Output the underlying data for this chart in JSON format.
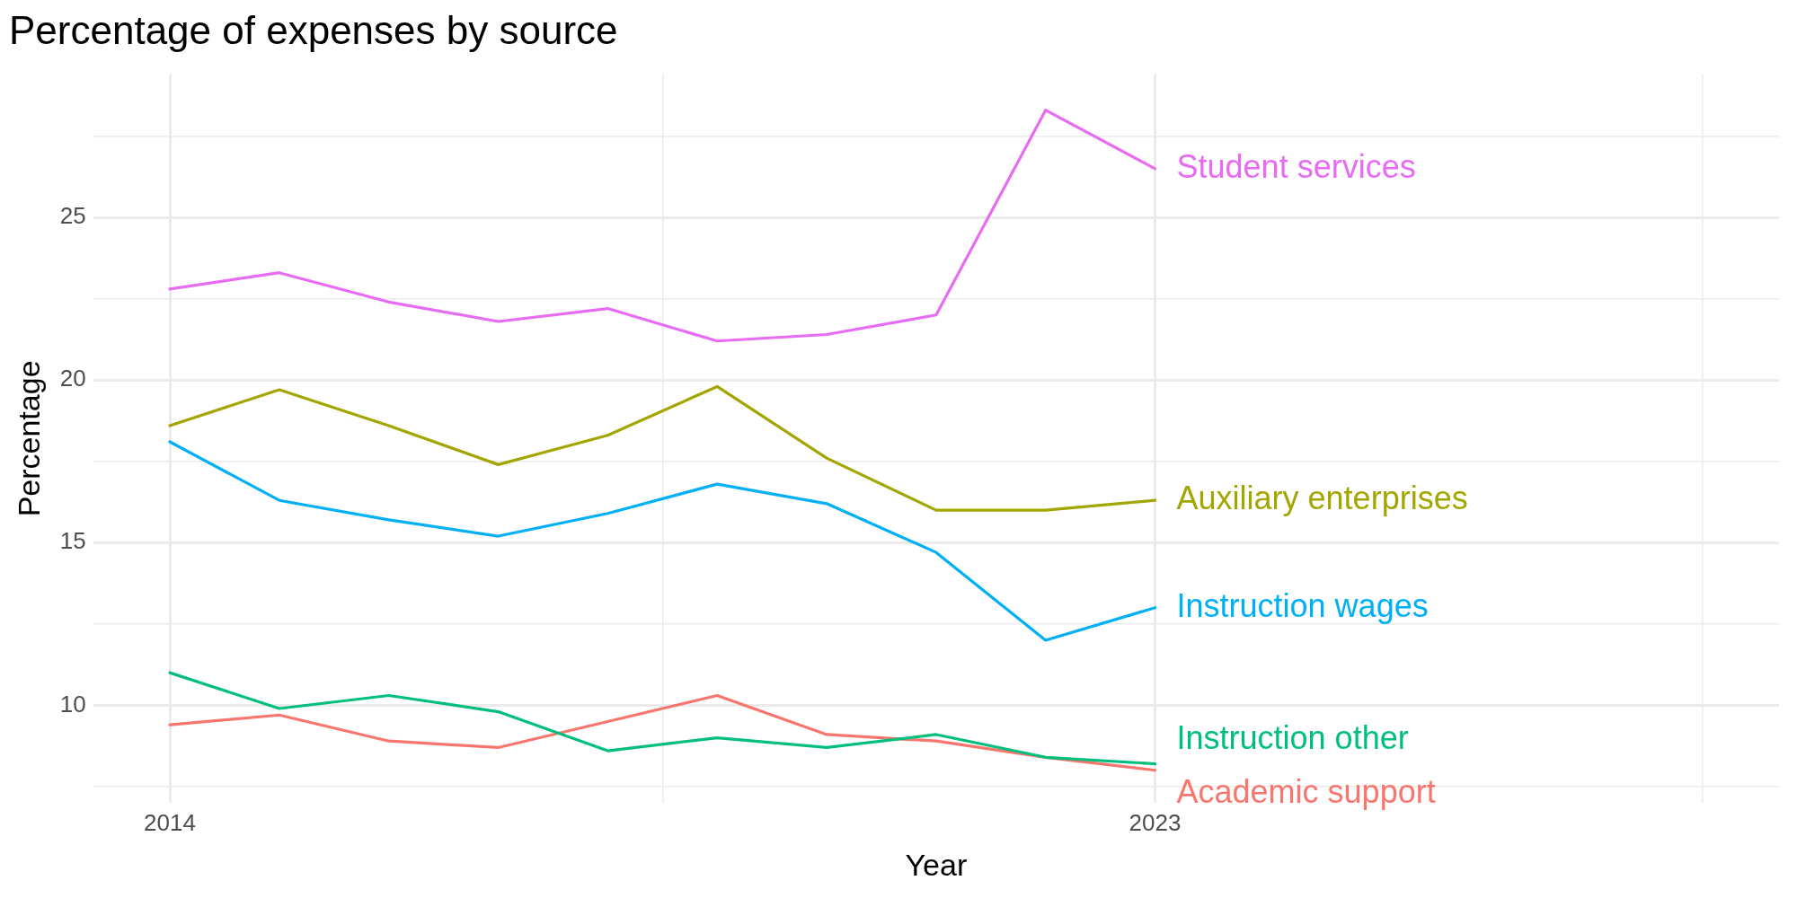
{
  "chart_data": {
    "type": "line",
    "title": "Percentage of expenses by source",
    "xlabel": "Year",
    "ylabel": "Percentage",
    "x": [
      2014,
      2015,
      2016,
      2017,
      2018,
      2019,
      2020,
      2021,
      2022,
      2023
    ],
    "xlim": [
      2013.3,
      2028.7
    ],
    "xticks": [
      2014,
      {
        "value": 2018.5,
        "label": null
      },
      2023,
      {
        "value": 2028,
        "label": null
      }
    ],
    "ylim": [
      7,
      29.4
    ],
    "yticks": [
      {
        "value": 7.5,
        "label": null
      },
      10,
      {
        "value": 12.5,
        "label": null
      },
      15,
      {
        "value": 17.5,
        "label": null
      },
      20,
      {
        "value": 22.5,
        "label": null
      },
      25,
      {
        "value": 27.5,
        "label": null
      }
    ],
    "grid": true,
    "legend": false,
    "marker": "none",
    "line_style": "solid",
    "series": [
      {
        "name": "Student services",
        "color": "#e76bf3",
        "values": [
          22.8,
          23.3,
          22.4,
          21.8,
          22.2,
          21.2,
          21.4,
          22.0,
          28.3,
          26.5
        ]
      },
      {
        "name": "Auxiliary enterprises",
        "color": "#a3a500",
        "values": [
          18.6,
          19.7,
          18.6,
          17.4,
          18.3,
          19.8,
          17.6,
          16.0,
          16.0,
          16.3
        ]
      },
      {
        "name": "Instruction wages",
        "color": "#00b0f6",
        "values": [
          18.1,
          16.3,
          15.7,
          15.2,
          15.9,
          16.8,
          16.2,
          14.7,
          12.0,
          13.0
        ]
      },
      {
        "name": "Instruction other",
        "color": "#00bf7d",
        "values": [
          11.0,
          9.9,
          10.3,
          9.8,
          8.6,
          9.0,
          8.7,
          9.1,
          8.4,
          8.2
        ]
      },
      {
        "name": "Academic support",
        "color": "#f8766d",
        "values": [
          9.4,
          9.7,
          8.9,
          8.7,
          9.5,
          10.3,
          9.1,
          8.9,
          8.4,
          8.0
        ]
      }
    ]
  }
}
